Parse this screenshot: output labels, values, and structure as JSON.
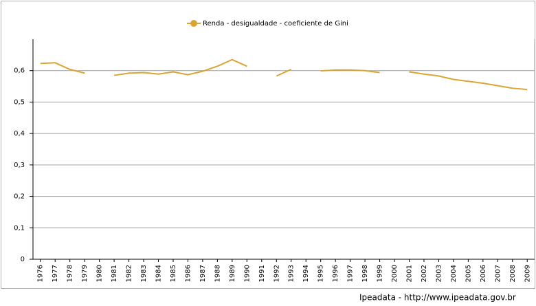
{
  "chart_data": {
    "type": "line",
    "legend": "Renda - desigualdade - coeficiente de Gini",
    "source": "Ipeadata - http://www.ipeadata.gov.br",
    "color": "#dba534",
    "categories": [
      "1976",
      "1977",
      "1978",
      "1979",
      "1980",
      "1981",
      "1982",
      "1983",
      "1984",
      "1985",
      "1986",
      "1987",
      "1988",
      "1989",
      "1990",
      "1991",
      "1992",
      "1993",
      "1994",
      "1995",
      "1996",
      "1997",
      "1998",
      "1999",
      "2000",
      "2001",
      "2002",
      "2003",
      "2004",
      "2005",
      "2006",
      "2007",
      "2008",
      "2009"
    ],
    "values": [
      0.623,
      0.625,
      0.604,
      0.592,
      null,
      0.585,
      0.592,
      0.594,
      0.589,
      0.596,
      0.587,
      0.598,
      0.614,
      0.635,
      0.614,
      null,
      0.583,
      0.604,
      null,
      0.599,
      0.602,
      0.602,
      0.6,
      0.594,
      null,
      0.596,
      0.589,
      0.583,
      0.572,
      0.566,
      0.56,
      0.552,
      0.544,
      0.54
    ],
    "ylim": [
      0,
      0.7
    ],
    "yticks": [
      0,
      {
        "value": 0.1,
        "label": "0,1"
      },
      {
        "value": 0.2,
        "label": "0,2"
      },
      {
        "value": 0.3,
        "label": "0,3"
      },
      {
        "value": 0.4,
        "label": "0,4"
      },
      {
        "value": 0.5,
        "label": "0,5"
      },
      {
        "value": 0.6,
        "label": "0,6"
      }
    ],
    "grid": true
  }
}
